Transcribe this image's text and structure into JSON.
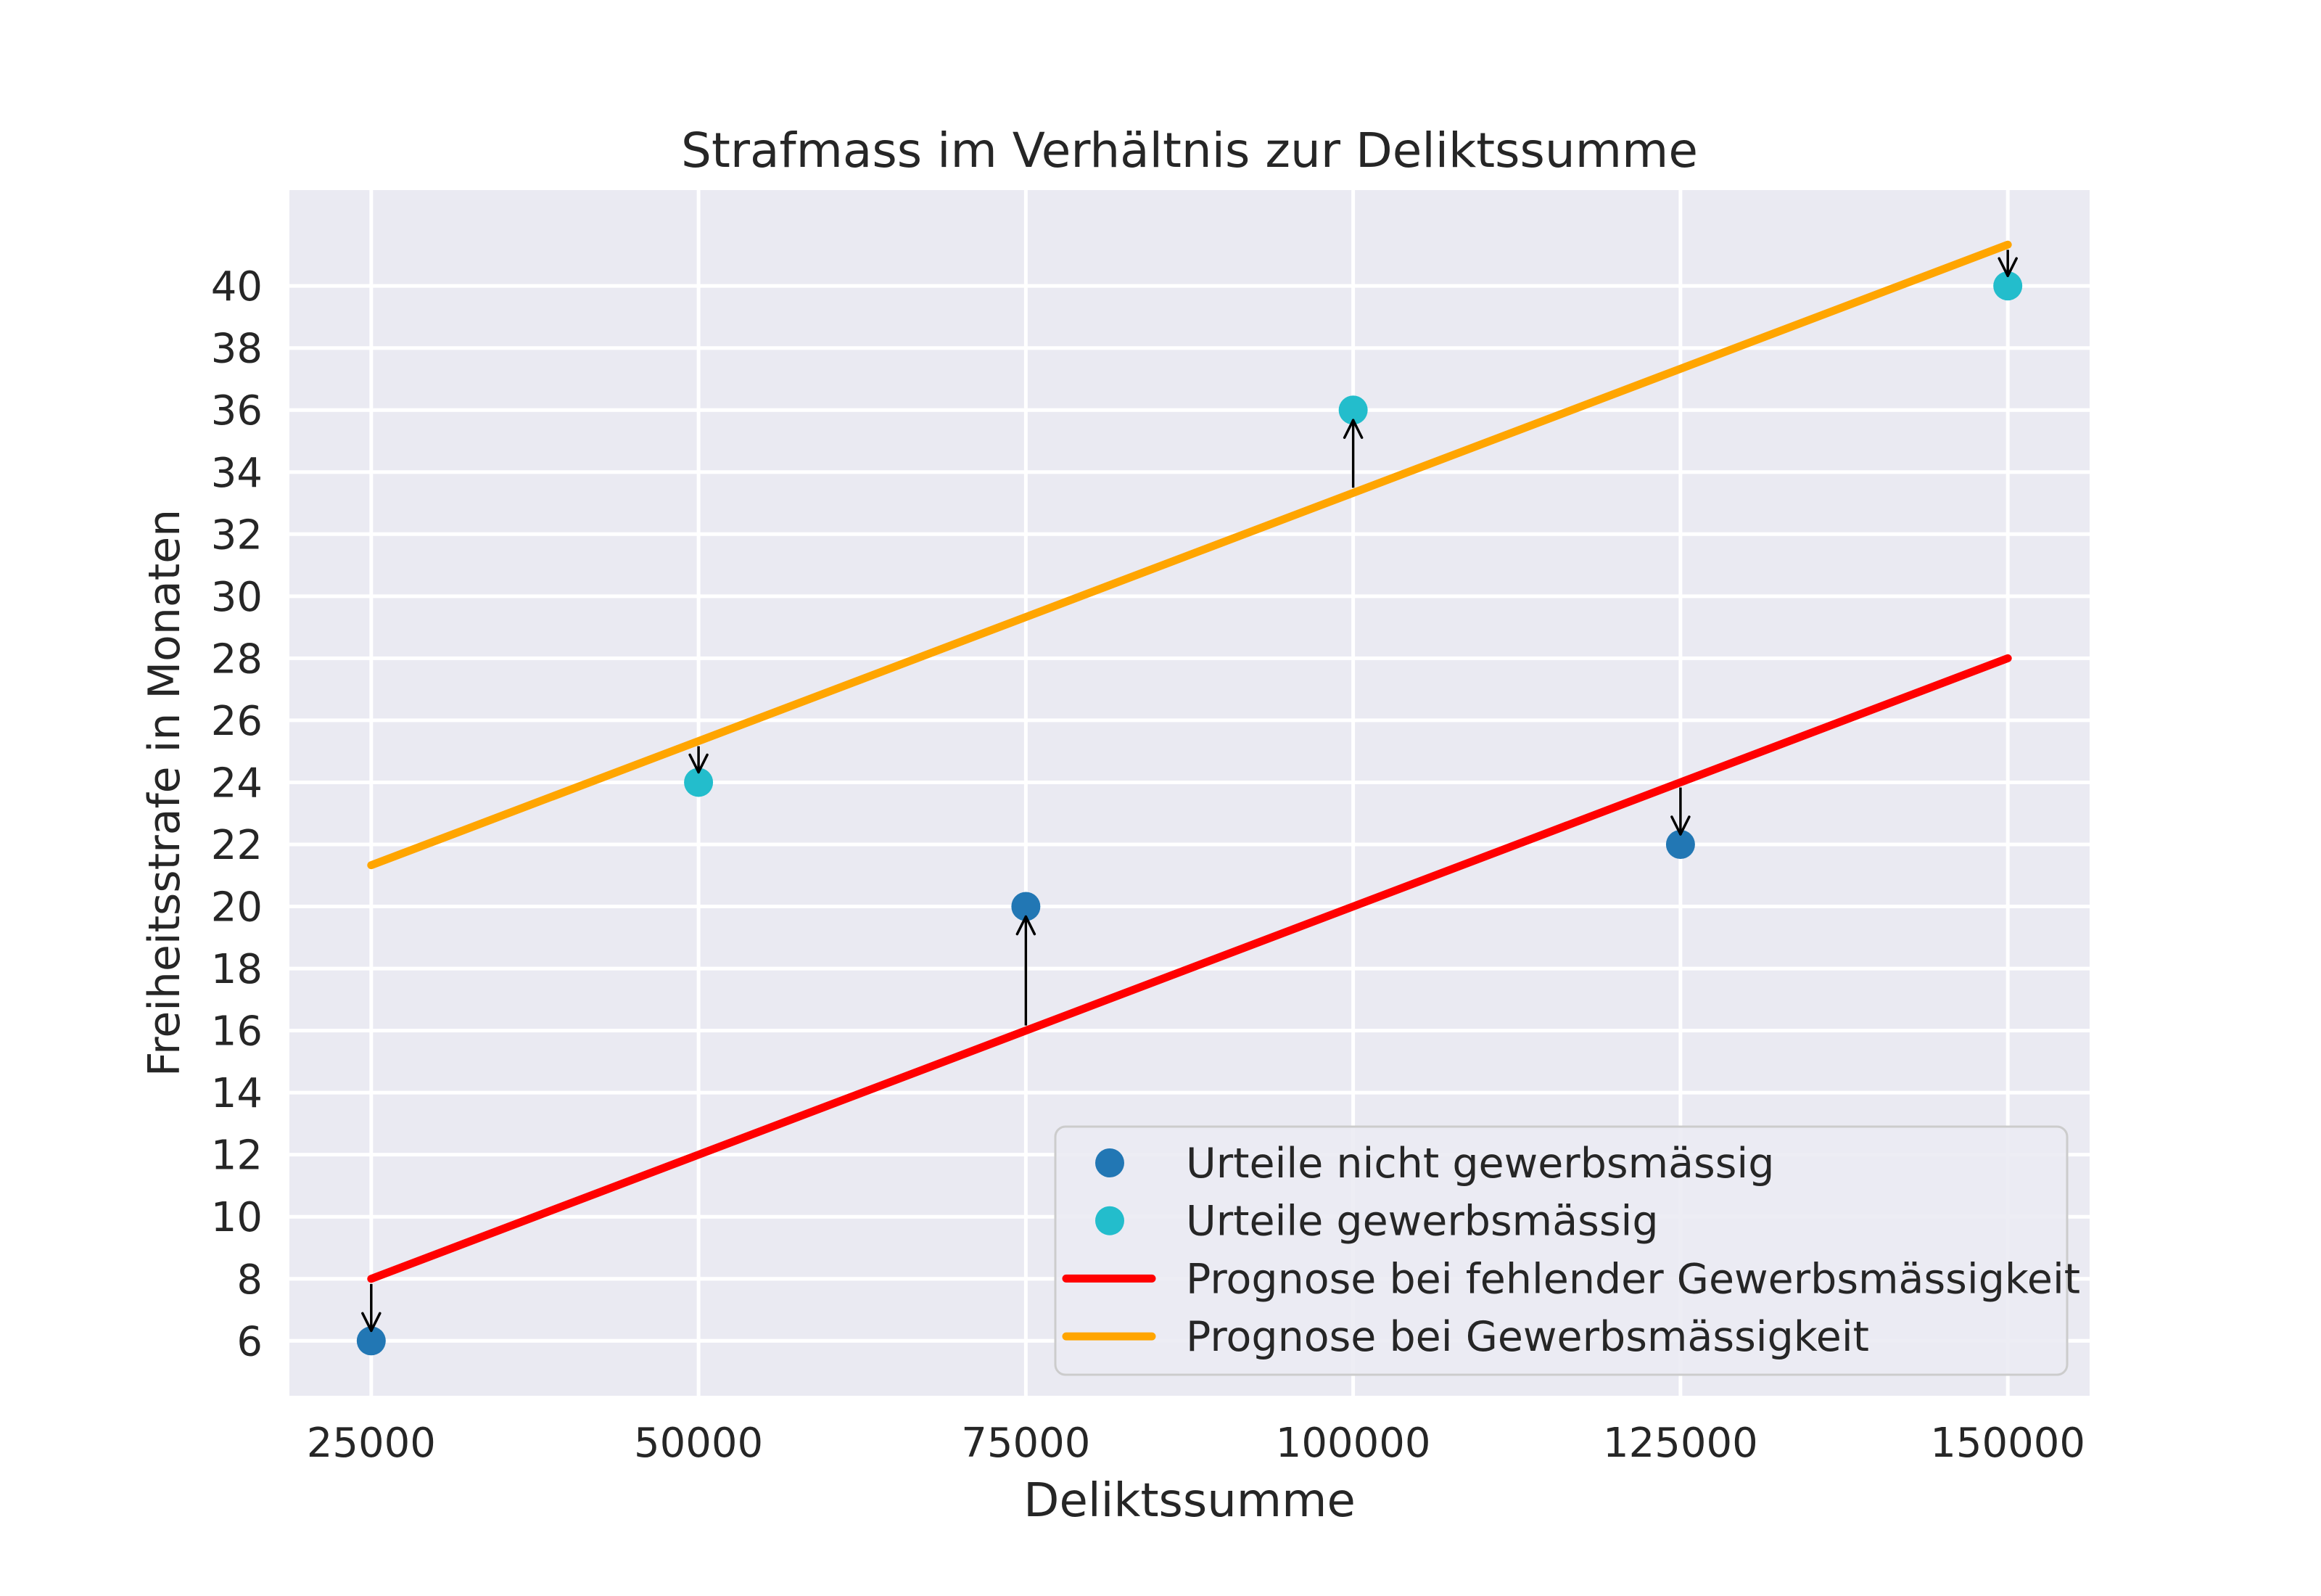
{
  "figure": {
    "background": "#ffffff"
  },
  "chart_data": {
    "type": "scatter",
    "title": "Strafmass im Verhältnis zur Deliktssumme",
    "xlabel": "Deliktssumme",
    "ylabel": "Freiheitsstrafe in Monaten",
    "plot_background": "#eaeaf2",
    "grid": true,
    "grid_color": "#ffffff",
    "text_color": "#262626",
    "xlim": [
      18750,
      156250
    ],
    "ylim": [
      4.23,
      43.09
    ],
    "x_ticks": [
      25000,
      50000,
      75000,
      100000,
      125000,
      150000
    ],
    "y_ticks": [
      6,
      8,
      10,
      12,
      14,
      16,
      18,
      20,
      22,
      24,
      26,
      28,
      30,
      32,
      34,
      36,
      38,
      40
    ],
    "legend": {
      "position": "lower right",
      "border_color": "#cccccc"
    },
    "series": [
      {
        "name": "Urteile nicht gewerbsmässig",
        "kind": "scatter",
        "color": "#2277b4",
        "points": [
          [
            25000,
            6
          ],
          [
            75000,
            20
          ],
          [
            125000,
            22
          ]
        ]
      },
      {
        "name": "Urteile gewerbsmässig",
        "kind": "scatter",
        "color": "#23bdcc",
        "points": [
          [
            50000,
            24
          ],
          [
            100000,
            36
          ],
          [
            150000,
            40
          ]
        ]
      },
      {
        "name": "Prognose bei fehlender Gewerbsmässigkeit",
        "kind": "line",
        "color": "#ff0000",
        "points": [
          [
            25000,
            8
          ],
          [
            150000,
            28
          ]
        ]
      },
      {
        "name": "Prognose bei Gewerbsmässigkeit",
        "kind": "line",
        "color": "#ffa500",
        "points": [
          [
            25000,
            21.33
          ],
          [
            150000,
            41.33
          ]
        ]
      }
    ],
    "residual_arrows": {
      "color": "#000000",
      "arrows": [
        {
          "x": 25000,
          "from": 8,
          "to": 6
        },
        {
          "x": 50000,
          "from": 25.33,
          "to": 24
        },
        {
          "x": 75000,
          "from": 16,
          "to": 20
        },
        {
          "x": 100000,
          "from": 33.33,
          "to": 36
        },
        {
          "x": 125000,
          "from": 24,
          "to": 22
        },
        {
          "x": 150000,
          "from": 41.33,
          "to": 40
        }
      ]
    }
  }
}
